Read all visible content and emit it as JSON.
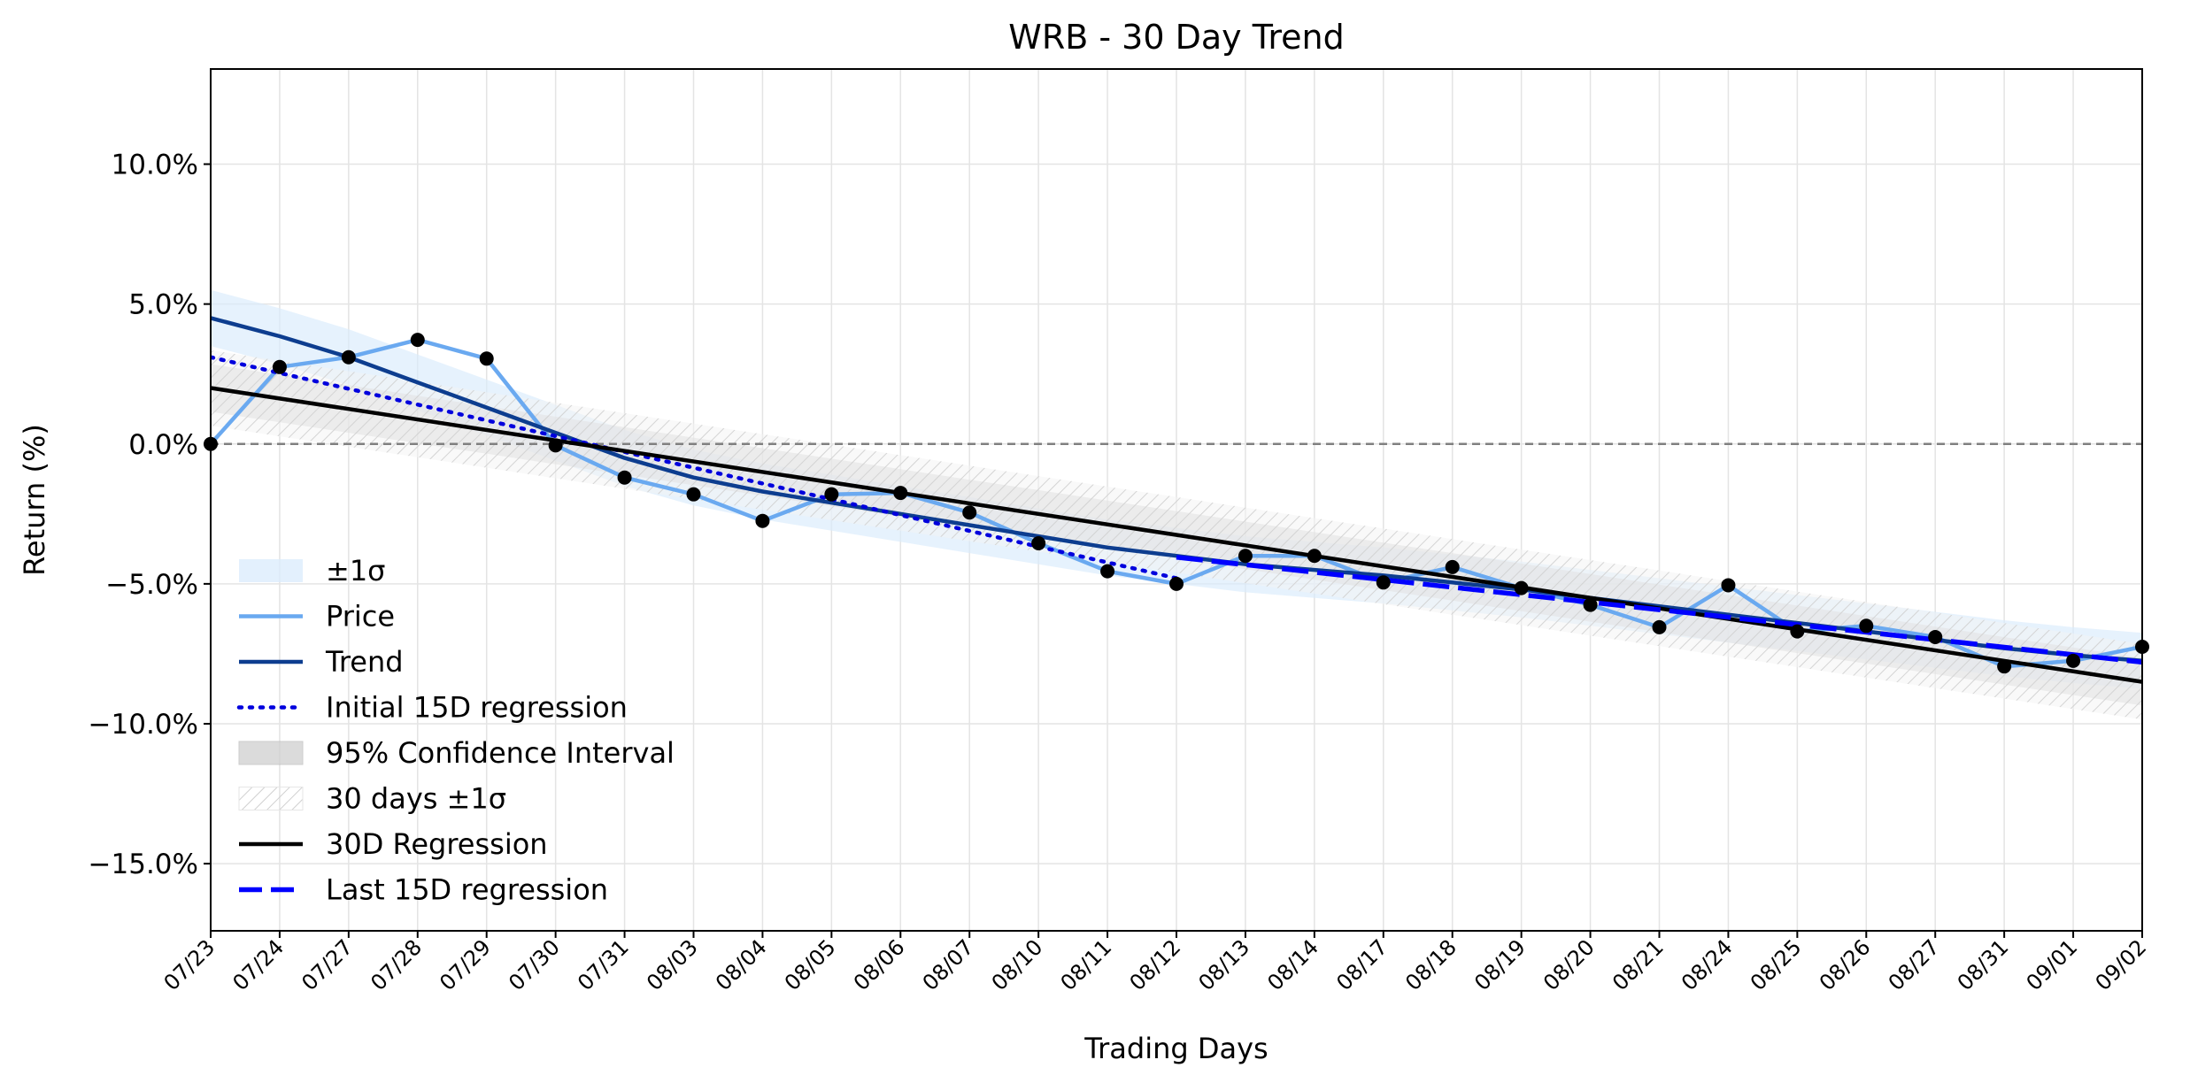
{
  "chart_data": {
    "type": "line",
    "title": "WRB - 30 Day Trend",
    "xlabel": "Trading Days",
    "ylabel": "Return (%)",
    "categories": [
      "07/23",
      "07/24",
      "07/27",
      "07/28",
      "07/29",
      "07/30",
      "07/31",
      "08/03",
      "08/04",
      "08/05",
      "08/06",
      "08/07",
      "08/10",
      "08/11",
      "08/12",
      "08/13",
      "08/14",
      "08/17",
      "08/18",
      "08/19",
      "08/20",
      "08/21",
      "08/24",
      "08/25",
      "08/26",
      "08/27",
      "08/31",
      "09/01",
      "09/02"
    ],
    "ylim": [
      -17.4,
      13.4
    ],
    "yticks": [
      -15,
      -10,
      -5,
      0,
      5,
      10
    ],
    "ytick_labels": [
      "−15.0%",
      "−10.0%",
      "−5.0%",
      "0.0%",
      "5.0%",
      "10.0%"
    ],
    "grid": true,
    "zero_line": 0,
    "legend_position": "lower-left",
    "series": [
      {
        "name": "Price",
        "color": "#6aa9f0",
        "values": [
          0.0,
          2.75,
          3.1,
          3.72,
          3.05,
          -0.05,
          -1.2,
          -1.8,
          -2.75,
          -1.8,
          -1.75,
          -2.45,
          -3.55,
          -4.55,
          -5.0,
          -4.0,
          -4.0,
          -4.95,
          -4.4,
          -5.15,
          -5.75,
          -6.55,
          -5.05,
          -6.7,
          -6.5,
          -6.9,
          -7.95,
          -7.75,
          -7.25
        ]
      },
      {
        "name": "Trend",
        "color": "#0d3d8f",
        "values": [
          4.5,
          3.85,
          3.1,
          2.2,
          1.3,
          0.4,
          -0.5,
          -1.2,
          -1.7,
          -2.1,
          -2.5,
          -2.9,
          -3.3,
          -3.7,
          -4.0,
          -4.3,
          -4.5,
          -4.7,
          -4.95,
          -5.2,
          -5.5,
          -5.8,
          -6.1,
          -6.4,
          -6.7,
          -7.0,
          -7.3,
          -7.55,
          -7.75
        ]
      },
      {
        "name": "Initial 15D regression",
        "color": "#0000dd",
        "x_range": [
          0,
          14
        ],
        "y_start": 3.1,
        "y_end": -4.8
      },
      {
        "name": "Last 15D regression",
        "color": "#0000ff",
        "x_range": [
          14,
          28
        ],
        "y_start": -4.05,
        "y_end": -7.8
      },
      {
        "name": "30D Regression",
        "color": "#000000",
        "x_range": [
          0,
          28
        ],
        "y_start": 2.0,
        "y_end": -8.5
      }
    ],
    "bands": [
      {
        "name": "±1σ",
        "color": "#d9ebfc",
        "around": "Trend",
        "width": 1.0
      },
      {
        "name": "95% Confidence Interval",
        "color": "#cfcfcf",
        "around": "30D Regression",
        "width": 0.85
      },
      {
        "name": "30 days ±1σ",
        "color": "#f3f3f3",
        "around": "30D Regression",
        "width": 1.35
      }
    ],
    "legend": [
      "±1σ",
      "Price",
      "Trend",
      "Initial 15D regression",
      "95% Confidence Interval",
      "30 days ±1σ",
      "30D Regression",
      "Last 15D regression"
    ]
  }
}
